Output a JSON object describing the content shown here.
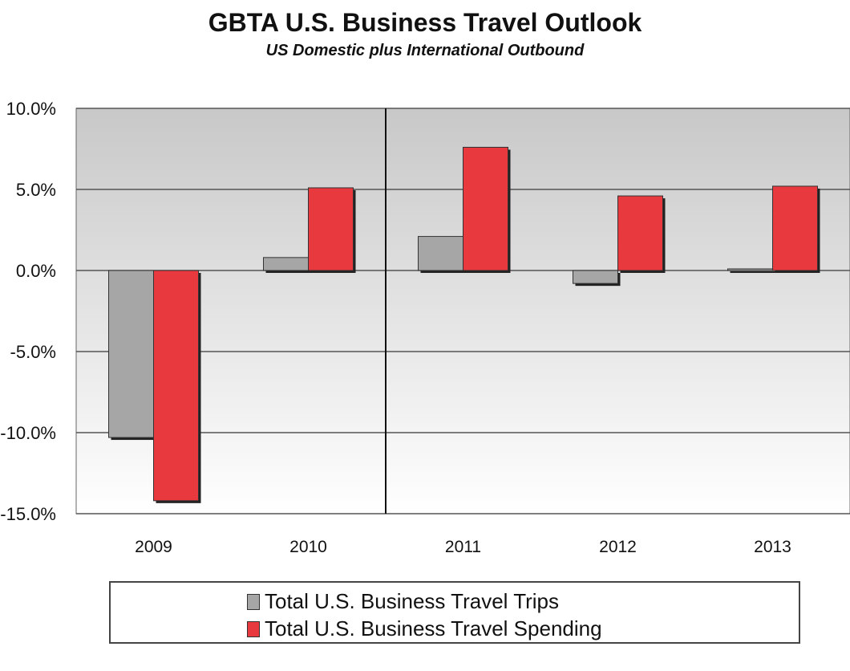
{
  "chart_data": {
    "type": "bar",
    "title": "GBTA U.S. Business Travel Outlook",
    "subtitle": "US Domestic plus International Outbound",
    "categories": [
      "2009",
      "2010",
      "2011",
      "2012",
      "2013"
    ],
    "series": [
      {
        "name": "Total U.S. Business Travel Trips",
        "values": [
          -10.3,
          0.8,
          2.1,
          -0.8,
          0.1
        ],
        "color": "#a6a6a6"
      },
      {
        "name": "Total U.S. Business Travel Spending",
        "values": [
          -14.2,
          5.1,
          7.6,
          4.6,
          5.2
        ],
        "color": "#e8393e"
      }
    ],
    "ylim": [
      -15,
      10
    ],
    "yticks": [
      "10.0%",
      "5.0%",
      "0.0%",
      "-5.0%",
      "-10.0%",
      "-15.0%"
    ],
    "ytick_values": [
      10,
      5,
      0,
      -5,
      -10,
      -15
    ],
    "forecast_divider_after": "2010",
    "grid": true,
    "legend_position": "bottom"
  }
}
